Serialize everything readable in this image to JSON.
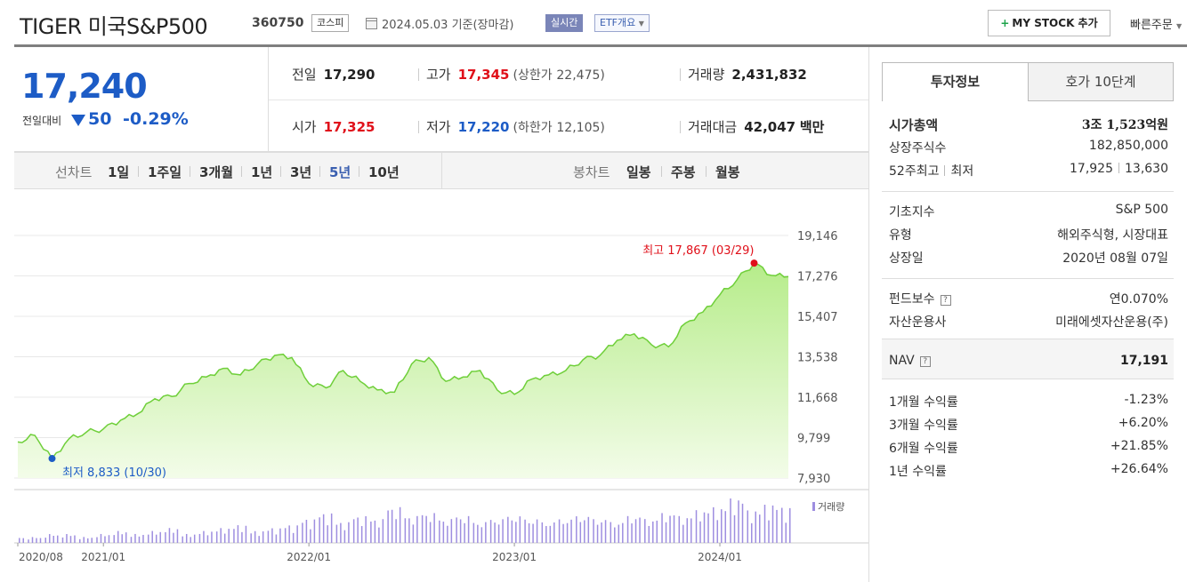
{
  "header": {
    "title": "TIGER 미국S&P500",
    "code": "360750",
    "market": "코스피",
    "date": "2024.05.03  기준(장마감)",
    "realtime": "실시간",
    "etf_summary": "ETF개요",
    "mystock": "MY STOCK 추가",
    "quick_order": "빠른주문"
  },
  "price": {
    "current": "17,240",
    "change_label": "전일대비",
    "change_amount": "50",
    "change_percent": "-0.29%"
  },
  "stats": {
    "prev": {
      "label": "전일",
      "value": "17,290"
    },
    "high": {
      "label": "고가",
      "value": "17,345",
      "sub_label": "(상한가",
      "sub_value": "22,475)"
    },
    "volume": {
      "label": "거래량",
      "value": "2,431,832"
    },
    "open": {
      "label": "시가",
      "value": "17,325"
    },
    "low": {
      "label": "저가",
      "value": "17,220",
      "sub_label": "(하한가",
      "sub_value": "12,105)"
    },
    "amount": {
      "label": "거래대금",
      "value": "42,047",
      "unit": "백만"
    }
  },
  "periods": {
    "label": "선차트",
    "items": [
      "1일",
      "1주일",
      "3개월",
      "1년",
      "3년",
      "5년",
      "10년"
    ],
    "active": "5년",
    "candle_label": "봉차트",
    "candle_items": [
      "일봉",
      "주봉",
      "월봉"
    ]
  },
  "chart_data": {
    "type": "area",
    "series_points": [
      [
        "2020-08",
        9600
      ],
      [
        "2020-09",
        9900
      ],
      [
        "2020-10",
        8833
      ],
      [
        "2020-11",
        9750
      ],
      [
        "2020-12",
        10050
      ],
      [
        "2021-01",
        10200
      ],
      [
        "2021-02",
        10600
      ],
      [
        "2021-03",
        10900
      ],
      [
        "2021-04",
        11600
      ],
      [
        "2021-05",
        11700
      ],
      [
        "2021-06",
        12300
      ],
      [
        "2021-07",
        12600
      ],
      [
        "2021-08",
        13000
      ],
      [
        "2021-09",
        12700
      ],
      [
        "2021-10",
        13200
      ],
      [
        "2021-11",
        13600
      ],
      [
        "2021-12",
        13500
      ],
      [
        "2022-01",
        12300
      ],
      [
        "2022-02",
        12100
      ],
      [
        "2022-03",
        12900
      ],
      [
        "2022-04",
        12400
      ],
      [
        "2022-05",
        12000
      ],
      [
        "2022-06",
        11900
      ],
      [
        "2022-07",
        13200
      ],
      [
        "2022-08",
        13500
      ],
      [
        "2022-09",
        12400
      ],
      [
        "2022-10",
        12600
      ],
      [
        "2022-11",
        12900
      ],
      [
        "2022-12",
        12000
      ],
      [
        "2023-01",
        11800
      ],
      [
        "2023-02",
        12500
      ],
      [
        "2023-03",
        12700
      ],
      [
        "2023-04",
        12900
      ],
      [
        "2023-05",
        13400
      ],
      [
        "2023-06",
        13600
      ],
      [
        "2023-07",
        14300
      ],
      [
        "2023-08",
        14600
      ],
      [
        "2023-09",
        14100
      ],
      [
        "2023-10",
        14000
      ],
      [
        "2023-11",
        15100
      ],
      [
        "2023-12",
        15600
      ],
      [
        "2024-01",
        16400
      ],
      [
        "2024-02",
        17100
      ],
      [
        "2024-03",
        17867
      ],
      [
        "2024-04",
        17300
      ],
      [
        "2024-05",
        17240
      ]
    ],
    "volume": [
      2,
      2,
      3,
      3,
      2,
      3,
      4,
      3,
      4,
      5,
      3,
      4,
      5,
      6,
      4,
      5,
      6,
      8,
      10,
      7,
      9,
      8,
      12,
      9,
      10,
      8,
      9,
      7,
      8,
      9,
      8,
      7,
      8,
      9,
      8,
      7,
      9,
      8,
      10,
      9,
      11,
      12,
      15,
      11,
      13,
      12
    ],
    "yticks": [
      "19,146",
      "17,276",
      "15,407",
      "13,538",
      "11,668",
      "9,799",
      "7,930"
    ],
    "ylim": [
      7930,
      19146
    ],
    "xticks": [
      [
        "2020-08",
        "2020/08"
      ],
      [
        "2021-01",
        "2021/01"
      ],
      [
        "2022-01",
        "2022/01"
      ],
      [
        "2023-01",
        "2023/01"
      ],
      [
        "2024-01",
        "2024/01"
      ]
    ],
    "high_label": "최고 17,867 (03/29)",
    "low_label": "최저 8,833 (10/30)",
    "volume_legend": "거래량",
    "colors": {
      "line": "#6fcf3a",
      "fill_top": "#b6ec8a",
      "fill_bottom": "#f3fce9",
      "high": "#e0101a",
      "low": "#1d5cc6",
      "volume": "#9e8ee0"
    }
  },
  "info": {
    "tabs": [
      "투자정보",
      "호가 10단계"
    ],
    "market_cap": {
      "label": "시가총액",
      "value": "3조 1,523억원"
    },
    "shares": {
      "label": "상장주식수",
      "value": "182,850,000"
    },
    "week52": {
      "label_high": "52주최고",
      "label_low": "최저",
      "high": "17,925",
      "low": "13,630"
    },
    "index": {
      "label": "기초지수",
      "value": "S&P 500"
    },
    "type": {
      "label": "유형",
      "value": "해외주식형, 시장대표"
    },
    "listing": {
      "label": "상장일",
      "value": "2020년 08월 07일"
    },
    "fee": {
      "label": "펀드보수",
      "value": "연0.070%"
    },
    "manager": {
      "label": "자산운용사",
      "value": "미래에셋자산운용(주)"
    },
    "nav": {
      "label": "NAV",
      "value": "17,191"
    },
    "returns": [
      {
        "label": "1개월 수익률",
        "value": "-1.23%",
        "dir": "down"
      },
      {
        "label": "3개월 수익률",
        "value": "+6.20%",
        "dir": "up"
      },
      {
        "label": "6개월 수익률",
        "value": "+21.85%",
        "dir": "up"
      },
      {
        "label": "1년 수익률",
        "value": "+26.64%",
        "dir": "up"
      }
    ]
  }
}
